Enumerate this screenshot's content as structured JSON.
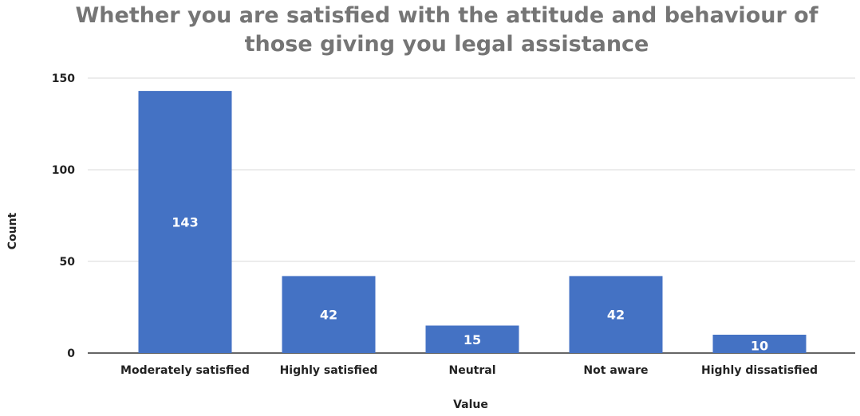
{
  "chart_data": {
    "type": "bar",
    "title": "Whether you are satisfied with the attitude and behaviour of those giving you legal assistance",
    "title_lines": [
      "Whether you are satisfied with the attitude and behaviour of",
      "those giving you legal assistance"
    ],
    "xlabel": "Value",
    "ylabel": "Count",
    "categories": [
      "Moderately satisfied",
      "Highly satisfied",
      "Neutral",
      "Not aware",
      "Highly dissatisfied"
    ],
    "values": [
      143,
      42,
      15,
      42,
      10
    ],
    "ylim": [
      0,
      150
    ],
    "yticks": [
      0,
      50,
      100,
      150
    ],
    "grid": true,
    "legend": "none",
    "bar_color": "#4472c4",
    "gridline_color": "#d9d9d9"
  }
}
